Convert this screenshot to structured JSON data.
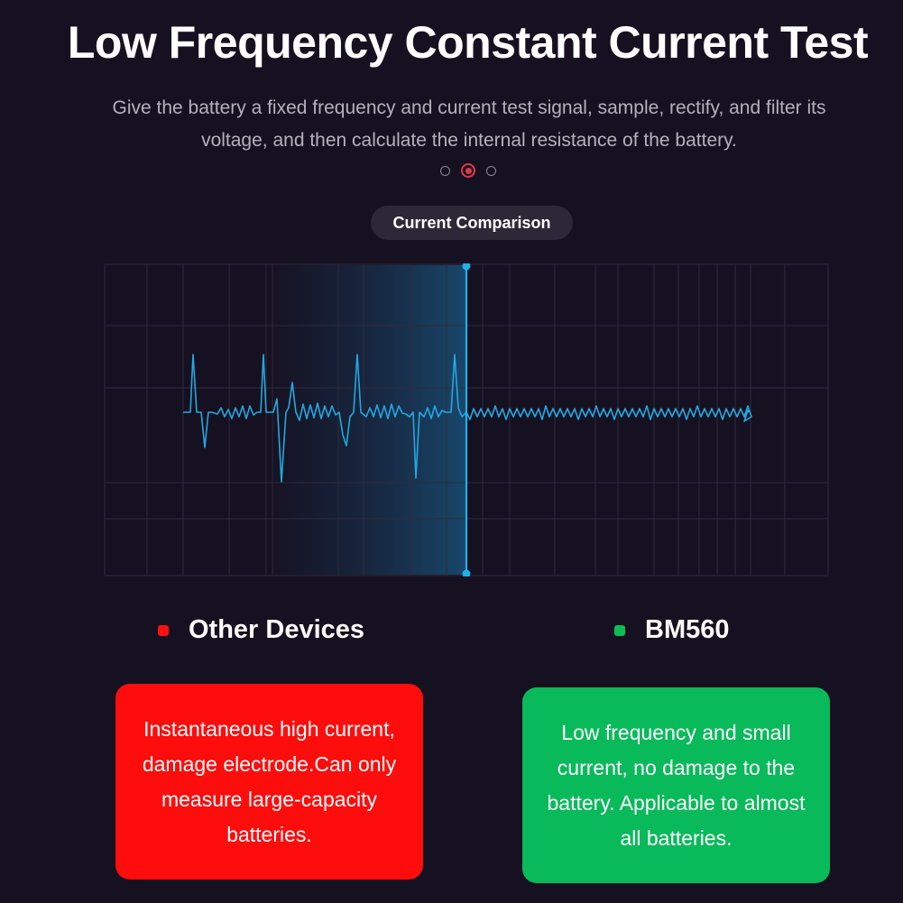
{
  "header": {
    "title": "Low Frequency Constant Current Test",
    "subtitle": "Give the battery a fixed frequency and current test signal, sample, rectify, and filter its voltage, and then calculate the internal resistance of the battery."
  },
  "pagination": {
    "total": 3,
    "active_index": 1
  },
  "chart_label": "Current Comparison",
  "chart_data": {
    "type": "line",
    "title": "Current Comparison",
    "grid": true,
    "series": [
      {
        "segment": "left of marker",
        "color": "#23a8e0"
      },
      {
        "segment": "right of marker",
        "color": "#23a8e0"
      }
    ],
    "marker_color": "#1fb1ea"
  },
  "comparison": {
    "other": {
      "legend": "Other Devices",
      "color": "#ff0c0c",
      "description": "Instantaneous high current, damage electrode.Can only measure large-capacity batteries."
    },
    "bm560": {
      "legend": "BM560",
      "color": "#08ba5a",
      "description": "Low frequency and small current, no damage to the battery. Applicable to almost all batteries."
    }
  }
}
